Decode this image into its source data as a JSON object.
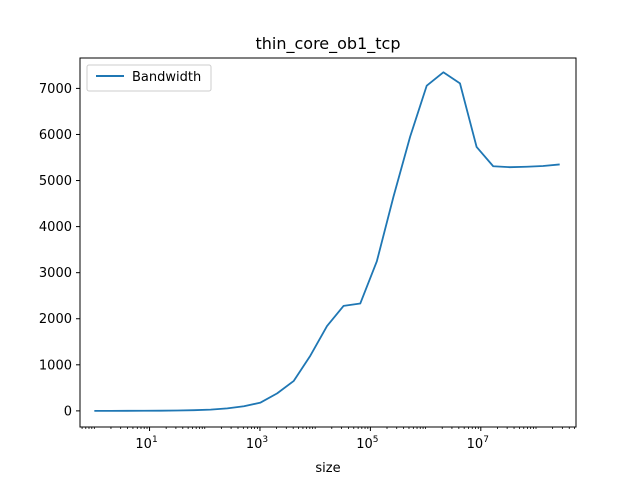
{
  "chart_data": {
    "type": "line",
    "title": "thin_core_ob1_tcp",
    "xlabel": "size",
    "ylabel": "",
    "xscale": "log",
    "xlim": [
      0.55,
      530000000
    ],
    "ylim": [
      -350,
      7660
    ],
    "xticks": [
      {
        "value": 10,
        "base": "10",
        "exp": "1"
      },
      {
        "value": 1000,
        "base": "10",
        "exp": "3"
      },
      {
        "value": 100000,
        "base": "10",
        "exp": "5"
      },
      {
        "value": 10000000,
        "base": "10",
        "exp": "7"
      }
    ],
    "yticks": [
      0,
      1000,
      2000,
      3000,
      4000,
      5000,
      6000,
      7000
    ],
    "grid": false,
    "legend": {
      "placement": "top-left",
      "entries": [
        "Bandwidth"
      ]
    },
    "series": [
      {
        "name": "Bandwidth",
        "color": "#1f77b4",
        "x": [
          1,
          2,
          4,
          8,
          16,
          32,
          64,
          128,
          256,
          512,
          1024,
          2048,
          4096,
          8192,
          16384,
          32768,
          65536,
          131072,
          262144,
          524288,
          1048576,
          2097152,
          4194304,
          8388608,
          16777216,
          33554432,
          67108864,
          134217728,
          268435456
        ],
        "values": [
          0,
          0,
          1,
          2,
          4,
          8,
          15,
          28,
          55,
          100,
          180,
          380,
          650,
          1200,
          1840,
          2280,
          2330,
          3250,
          4650,
          5950,
          7060,
          7350,
          7110,
          5730,
          5310,
          5290,
          5300,
          5315,
          5350
        ]
      }
    ]
  }
}
